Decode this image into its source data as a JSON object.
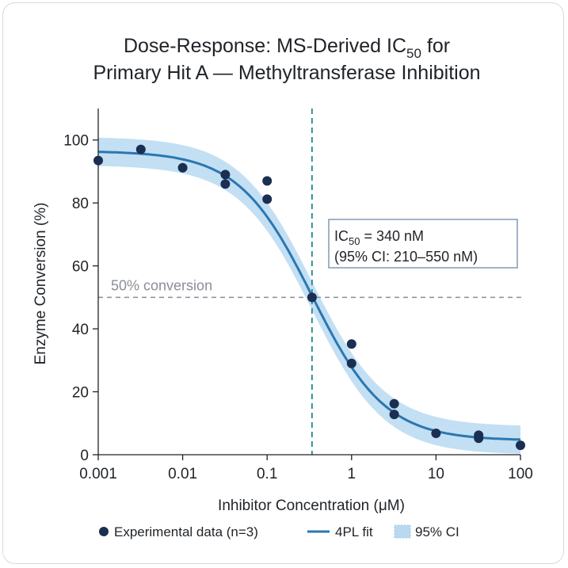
{
  "chart_data": {
    "type": "scatter",
    "title_lines": [
      {
        "pre": "Dose-Response: MS-Derived IC",
        "sub": "50",
        "post": " for"
      },
      {
        "pre": "Primary Hit A — Methyltransferase Inhibition",
        "sub": "",
        "post": ""
      }
    ],
    "xlabel": "Inhibitor Concentration (μM)",
    "ylabel": "Enzyme Conversion (%)",
    "xscale": "log",
    "xlim": [
      0.001,
      100
    ],
    "ylim": [
      0,
      110
    ],
    "x_ticks": [
      0.001,
      0.01,
      0.1,
      1,
      10,
      100
    ],
    "x_tick_labels": [
      "0.001",
      "0.01",
      "0.1",
      "1",
      "10",
      "100"
    ],
    "y_ticks": [
      0,
      20,
      40,
      60,
      80,
      100
    ],
    "y_tick_labels": [
      "0",
      "20",
      "40",
      "60",
      "80",
      "100"
    ],
    "grid": false,
    "series": [
      {
        "name": "Experimental data (n=3)",
        "kind": "points",
        "color": "#1b2f52",
        "points": [
          [
            0.001,
            93.5
          ],
          [
            0.0032,
            97
          ],
          [
            0.01,
            91.2
          ],
          [
            0.032,
            89
          ],
          [
            0.032,
            86
          ],
          [
            0.1,
            87
          ],
          [
            0.1,
            81.2
          ],
          [
            0.34,
            50
          ],
          [
            1,
            35.2
          ],
          [
            1,
            29
          ],
          [
            3.2,
            16.2
          ],
          [
            3.2,
            12.8
          ],
          [
            10,
            6.8
          ],
          [
            32,
            6.2
          ],
          [
            32,
            5.2
          ],
          [
            100,
            3
          ]
        ]
      },
      {
        "name": "4PL fit",
        "kind": "curve",
        "color": "#2b77b0",
        "model": {
          "top": 96.5,
          "bottom": 4.5,
          "ic50_uM": 0.34,
          "hill": 1
        }
      },
      {
        "name": "95% CI",
        "kind": "band",
        "color": "#b9d9f1",
        "half_width": 4.5
      }
    ],
    "reference_lines": {
      "horizontal": {
        "y": 50,
        "label": "50% conversion",
        "color": "#8a8f96"
      },
      "vertical": {
        "x": 0.34,
        "color": "#1f8a8a"
      }
    },
    "annotation": {
      "line1_pre": "IC",
      "line1_sub": "50",
      "line1_post": " = 340 nM",
      "line2": "(95% CI: 210–550 nM)"
    },
    "legend": {
      "placement": "bottom",
      "items": [
        "Experimental data (n=3)",
        "4PL fit",
        "95% CI"
      ]
    }
  }
}
